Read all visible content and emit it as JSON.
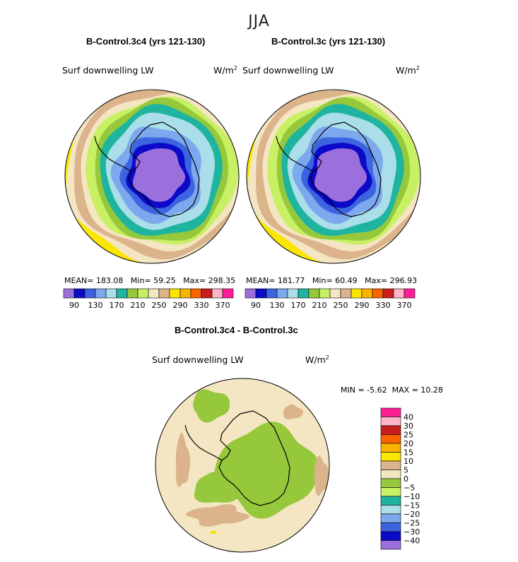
{
  "season": "JJA",
  "colors": {
    "levels": [
      "#9b6fdc",
      "#0a0ac8",
      "#3c64e1",
      "#7ca8ee",
      "#aadee8",
      "#1eb4a0",
      "#96c83c",
      "#c8f064",
      "#f5e6c3",
      "#dcb48c",
      "#fae600",
      "#fab400",
      "#fa6400",
      "#c81e1e",
      "#ffb4c8",
      "#ff1e96"
    ],
    "diff": [
      "#9b6fdc",
      "#0a0ac8",
      "#3c64e1",
      "#7ca8ee",
      "#aadee8",
      "#1eb4a0",
      "#c8f064",
      "#96c83c",
      "#f5e6c3",
      "#dcb48c",
      "#fae600",
      "#fab400",
      "#fa6400",
      "#c81e1e",
      "#ffb4c8",
      "#ff1e96"
    ],
    "coast": "#000000"
  },
  "panels": [
    {
      "title": "B-Control.3c4 (yrs 121-130)",
      "variable": "Surf downwelling LW",
      "units": "W/m",
      "units_sup": "2",
      "mean_label": "MEAN=",
      "mean": "183.08",
      "min_label": "Min=",
      "min": "59.25",
      "max_label": "Max=",
      "max": "298.35"
    },
    {
      "title": "B-Control.3c (yrs 121-130)",
      "variable": "Surf downwelling LW",
      "units": "W/m",
      "units_sup": "2",
      "mean_label": "MEAN=",
      "mean": "181.77",
      "min_label": "Min=",
      "min": "60.49",
      "max_label": "Max=",
      "max": "296.93"
    }
  ],
  "diff_panel": {
    "title": "B-Control.3c4 - B-Control.3c",
    "variable": "Surf downwelling LW",
    "units": "W/m",
    "units_sup": "2",
    "min_label": "MIN =",
    "min": "-5.62",
    "max_label": "MAX =",
    "max": "10.28"
  },
  "chart_data": [
    {
      "type": "heatmap",
      "projection": "south-polar-stereographic",
      "title": "B-Control.3c4 (yrs 121-130)",
      "variable": "Surf downwelling LW",
      "units": "W/m2",
      "mean": 183.08,
      "min": 59.25,
      "max": 298.35,
      "contour_levels": [
        90,
        110,
        130,
        150,
        170,
        190,
        210,
        230,
        250,
        270,
        290,
        310,
        330,
        350,
        370
      ],
      "colorbar_tick_labels": [
        "90",
        "130",
        "170",
        "210",
        "250",
        "290",
        "330",
        "370"
      ]
    },
    {
      "type": "heatmap",
      "projection": "south-polar-stereographic",
      "title": "B-Control.3c (yrs 121-130)",
      "variable": "Surf downwelling LW",
      "units": "W/m2",
      "mean": 181.77,
      "min": 60.49,
      "max": 296.93,
      "contour_levels": [
        90,
        110,
        130,
        150,
        170,
        190,
        210,
        230,
        250,
        270,
        290,
        310,
        330,
        350,
        370
      ],
      "colorbar_tick_labels": [
        "90",
        "130",
        "170",
        "210",
        "250",
        "290",
        "330",
        "370"
      ]
    },
    {
      "type": "heatmap",
      "projection": "south-polar-stereographic",
      "title": "B-Control.3c4 - B-Control.3c",
      "variable": "Surf downwelling LW",
      "units": "W/m2",
      "min": -5.62,
      "max": 10.28,
      "contour_levels": [
        -40,
        -30,
        -25,
        -20,
        -15,
        -10,
        -5,
        0,
        5,
        10,
        15,
        20,
        25,
        30,
        40
      ],
      "colorbar_tick_labels": [
        "40",
        "30",
        "25",
        "20",
        "15",
        "10",
        "5",
        "0",
        "−5",
        "−10",
        "−15",
        "−20",
        "−25",
        "−30",
        "−40"
      ]
    }
  ]
}
